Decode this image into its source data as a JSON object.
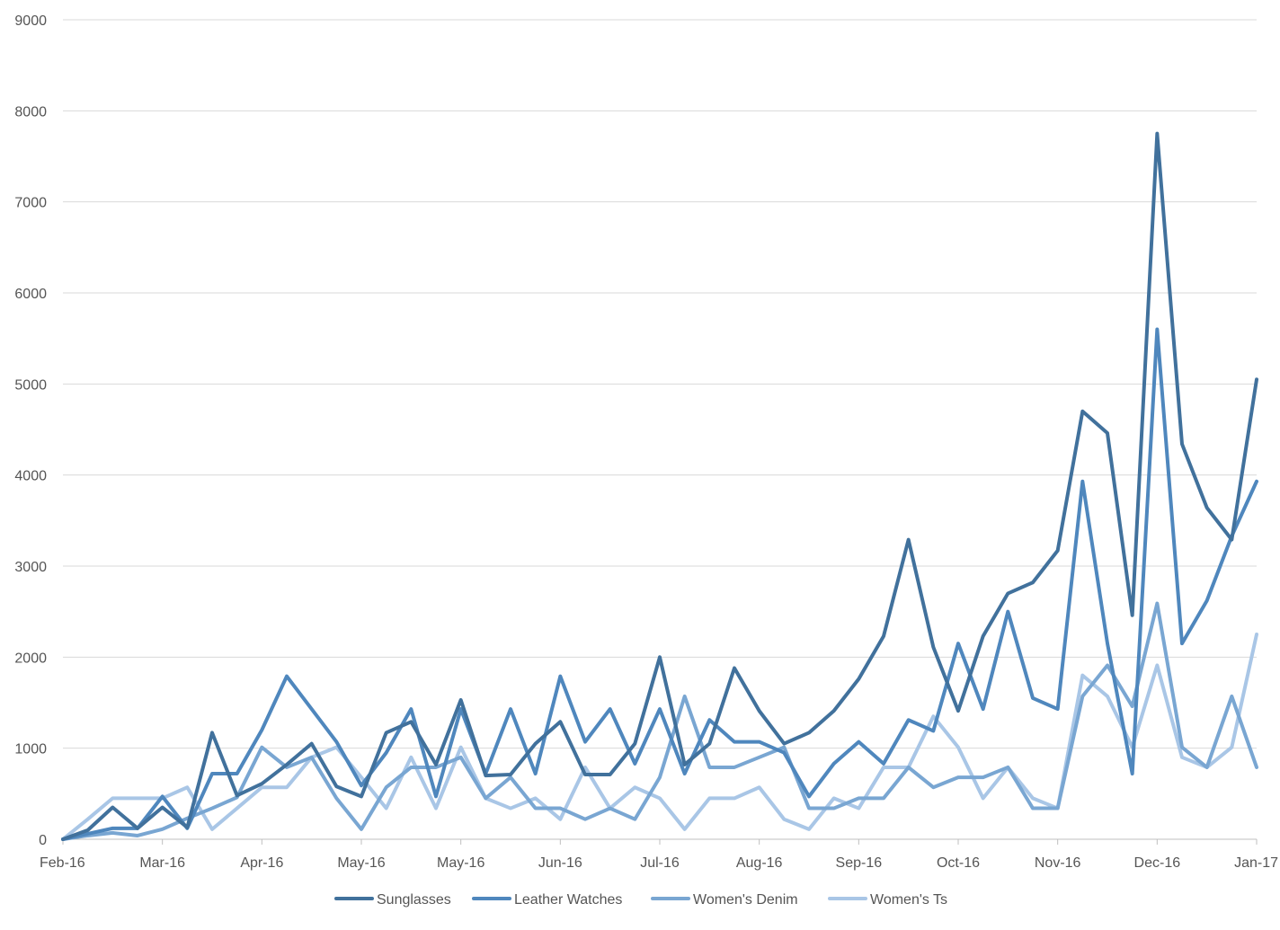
{
  "chart_data": {
    "type": "line",
    "title": "",
    "xlabel": "",
    "ylabel": "",
    "ylim": [
      0,
      9000
    ],
    "yticks": [
      0,
      1000,
      2000,
      3000,
      4000,
      5000,
      6000,
      7000,
      8000,
      9000
    ],
    "grid": true,
    "legend_position": "bottom",
    "x_tick_labels": [
      "Feb-16",
      "Mar-16",
      "Apr-16",
      "May-16",
      "May-16",
      "Jun-16",
      "Jul-16",
      "Aug-16",
      "Sep-16",
      "Oct-16",
      "Nov-16",
      "Dec-16",
      "Jan-17"
    ],
    "x_tick_indices": [
      0,
      4,
      8,
      12,
      16,
      20,
      24,
      28,
      32,
      36,
      40,
      44,
      48
    ],
    "num_points": 49,
    "series": [
      {
        "name": "Sunglasses",
        "color": "#41719c",
        "values": [
          0,
          100,
          350,
          120,
          350,
          130,
          1170,
          480,
          610,
          820,
          1050,
          580,
          470,
          1170,
          1290,
          820,
          1530,
          700,
          710,
          1050,
          1290,
          710,
          710,
          1050,
          2000,
          820,
          1050,
          1880,
          1410,
          1050,
          1170,
          1410,
          1760,
          2230,
          3290,
          2110,
          1410,
          2230,
          2700,
          2820,
          3170,
          4700,
          4460,
          2460,
          7750,
          4340,
          3640,
          3290,
          5050
        ]
      },
      {
        "name": "Leather Watches",
        "color": "#4f87bd",
        "values": [
          0,
          60,
          120,
          120,
          470,
          120,
          720,
          720,
          1200,
          1790,
          1430,
          1070,
          590,
          950,
          1430,
          470,
          1430,
          720,
          1430,
          720,
          1790,
          1070,
          1430,
          830,
          1430,
          720,
          1310,
          1070,
          1070,
          950,
          470,
          830,
          1070,
          830,
          1310,
          1190,
          2150,
          1430,
          2500,
          1550,
          1430,
          3930,
          2150,
          720,
          5600,
          2150,
          2620,
          3330,
          3930
        ]
      },
      {
        "name": "Women's Denim",
        "color": "#79a6d2",
        "values": [
          0,
          40,
          70,
          40,
          110,
          230,
          340,
          460,
          1010,
          790,
          900,
          450,
          110,
          570,
          790,
          790,
          900,
          450,
          680,
          340,
          340,
          220,
          340,
          220,
          680,
          1570,
          790,
          790,
          900,
          1010,
          340,
          340,
          450,
          450,
          790,
          570,
          680,
          680,
          790,
          340,
          340,
          1570,
          1910,
          1460,
          2590,
          1010,
          790,
          1570,
          790
        ]
      },
      {
        "name": "Women's Ts",
        "color": "#a9c6e6",
        "values": [
          0,
          220,
          450,
          450,
          450,
          570,
          110,
          340,
          570,
          570,
          900,
          1010,
          680,
          340,
          900,
          340,
          1010,
          450,
          340,
          450,
          220,
          790,
          340,
          570,
          450,
          110,
          450,
          450,
          570,
          220,
          110,
          450,
          340,
          790,
          790,
          1350,
          1010,
          450,
          790,
          450,
          340,
          1800,
          1570,
          1010,
          1910,
          900,
          790,
          1010,
          2250
        ]
      }
    ]
  }
}
